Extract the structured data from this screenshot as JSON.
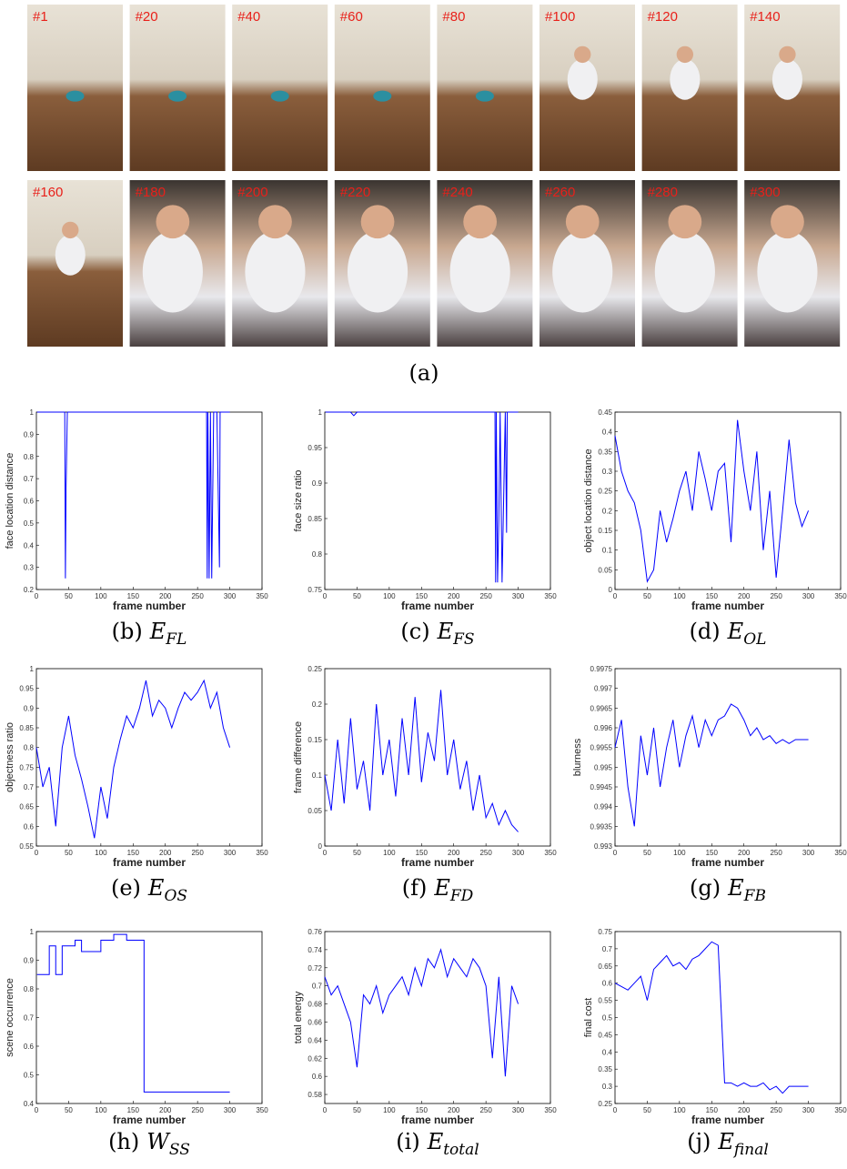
{
  "panel_a": {
    "caption": "(a)",
    "frames": [
      "#1",
      "#20",
      "#40",
      "#60",
      "#80",
      "#100",
      "#120",
      "#140",
      "#160",
      "#180",
      "#200",
      "#220",
      "#240",
      "#260",
      "#280",
      "#300"
    ]
  },
  "chart_data": [
    {
      "type": "line",
      "ylabel": "face location distance",
      "xlabel": "frame number",
      "label": "(b)",
      "symbol": "E",
      "subscript": "FL",
      "color": "#0000ff",
      "x": [
        1,
        44,
        45,
        46,
        48,
        264,
        265,
        266,
        268,
        270,
        272,
        275,
        280,
        284,
        285,
        286,
        300
      ],
      "values": [
        1,
        1,
        0.25,
        0.65,
        1,
        1,
        0.25,
        1,
        0.25,
        1,
        0.25,
        1,
        1,
        0.3,
        1,
        1,
        1
      ],
      "xlim": [
        0,
        350
      ],
      "xticks": [
        0,
        50,
        100,
        150,
        200,
        250,
        300,
        350
      ],
      "ylim": [
        0.2,
        1
      ],
      "yticks": [
        0.2,
        0.3,
        0.4,
        0.5,
        0.6,
        0.7,
        0.8,
        0.9,
        1
      ]
    },
    {
      "type": "line",
      "ylabel": "face size ratio",
      "xlabel": "frame number",
      "label": "(c)",
      "symbol": "E",
      "subscript": "FS",
      "color": "#0000ff",
      "x": [
        1,
        40,
        45,
        50,
        264,
        265,
        266,
        268,
        270,
        272,
        275,
        280,
        282,
        283,
        284,
        300
      ],
      "values": [
        1,
        1,
        0.995,
        1,
        1,
        0.76,
        1,
        0.76,
        0.85,
        1,
        0.76,
        1,
        0.83,
        1,
        1,
        1
      ],
      "xlim": [
        0,
        350
      ],
      "xticks": [
        0,
        50,
        100,
        150,
        200,
        250,
        300,
        350
      ],
      "ylim": [
        0.75,
        1
      ],
      "yticks": [
        0.75,
        0.8,
        0.85,
        0.9,
        0.95,
        1
      ]
    },
    {
      "type": "line",
      "ylabel": "object location distance",
      "xlabel": "frame number",
      "label": "(d)",
      "symbol": "E",
      "subscript": "OL",
      "color": "#0000ff",
      "x": [
        0,
        10,
        20,
        30,
        40,
        50,
        60,
        70,
        80,
        90,
        100,
        110,
        120,
        130,
        140,
        150,
        160,
        170,
        180,
        190,
        200,
        210,
        220,
        230,
        240,
        250,
        260,
        270,
        280,
        290,
        300
      ],
      "values": [
        0.39,
        0.3,
        0.25,
        0.22,
        0.15,
        0.02,
        0.05,
        0.2,
        0.12,
        0.18,
        0.25,
        0.3,
        0.2,
        0.35,
        0.28,
        0.2,
        0.3,
        0.32,
        0.12,
        0.43,
        0.3,
        0.2,
        0.35,
        0.1,
        0.25,
        0.03,
        0.2,
        0.38,
        0.22,
        0.16,
        0.2
      ],
      "xlim": [
        0,
        350
      ],
      "xticks": [
        0,
        50,
        100,
        150,
        200,
        250,
        300,
        350
      ],
      "ylim": [
        0,
        0.45
      ],
      "yticks": [
        0,
        0.05,
        0.1,
        0.15,
        0.2,
        0.25,
        0.3,
        0.35,
        0.4,
        0.45
      ]
    },
    {
      "type": "line",
      "ylabel": "objectness ratio",
      "xlabel": "frame number",
      "label": "(e)",
      "symbol": "E",
      "subscript": "OS",
      "color": "#0000ff",
      "x": [
        0,
        10,
        20,
        30,
        40,
        50,
        60,
        70,
        80,
        90,
        100,
        110,
        120,
        130,
        140,
        150,
        160,
        170,
        180,
        190,
        200,
        210,
        220,
        230,
        240,
        250,
        260,
        270,
        280,
        290,
        300
      ],
      "values": [
        0.8,
        0.7,
        0.75,
        0.6,
        0.8,
        0.88,
        0.78,
        0.72,
        0.65,
        0.57,
        0.7,
        0.62,
        0.75,
        0.82,
        0.88,
        0.85,
        0.9,
        0.97,
        0.88,
        0.92,
        0.9,
        0.85,
        0.9,
        0.94,
        0.92,
        0.94,
        0.97,
        0.9,
        0.94,
        0.85,
        0.8
      ],
      "xlim": [
        0,
        350
      ],
      "xticks": [
        0,
        50,
        100,
        150,
        200,
        250,
        300,
        350
      ],
      "ylim": [
        0.55,
        1
      ],
      "yticks": [
        0.55,
        0.6,
        0.65,
        0.7,
        0.75,
        0.8,
        0.85,
        0.9,
        0.95,
        1
      ]
    },
    {
      "type": "line",
      "ylabel": "frame difference",
      "xlabel": "frame number",
      "label": "(f)",
      "symbol": "E",
      "subscript": "FD",
      "color": "#0000ff",
      "x": [
        0,
        10,
        20,
        30,
        40,
        50,
        60,
        70,
        80,
        90,
        100,
        110,
        120,
        130,
        140,
        150,
        160,
        170,
        180,
        190,
        200,
        210,
        220,
        230,
        240,
        250,
        260,
        270,
        280,
        290,
        300
      ],
      "values": [
        0.1,
        0.05,
        0.15,
        0.06,
        0.18,
        0.08,
        0.12,
        0.05,
        0.2,
        0.1,
        0.15,
        0.07,
        0.18,
        0.1,
        0.21,
        0.09,
        0.16,
        0.12,
        0.22,
        0.1,
        0.15,
        0.08,
        0.12,
        0.05,
        0.1,
        0.04,
        0.06,
        0.03,
        0.05,
        0.03,
        0.02
      ],
      "xlim": [
        0,
        350
      ],
      "xticks": [
        0,
        50,
        100,
        150,
        200,
        250,
        300,
        350
      ],
      "ylim": [
        0,
        0.25
      ],
      "yticks": [
        0,
        0.05,
        0.1,
        0.15,
        0.2,
        0.25
      ]
    },
    {
      "type": "line",
      "ylabel": "blurness",
      "xlabel": "frame number",
      "label": "(g)",
      "symbol": "E",
      "subscript": "FB",
      "color": "#0000ff",
      "x": [
        0,
        10,
        20,
        30,
        40,
        50,
        60,
        70,
        80,
        90,
        100,
        110,
        120,
        130,
        140,
        150,
        160,
        170,
        180,
        190,
        200,
        210,
        220,
        230,
        240,
        250,
        260,
        270,
        280,
        290,
        300
      ],
      "values": [
        0.9955,
        0.9962,
        0.9945,
        0.9935,
        0.9958,
        0.9948,
        0.996,
        0.9945,
        0.9955,
        0.9962,
        0.995,
        0.9958,
        0.9963,
        0.9955,
        0.9962,
        0.9958,
        0.9962,
        0.9963,
        0.9966,
        0.9965,
        0.9962,
        0.9958,
        0.996,
        0.9957,
        0.9958,
        0.9956,
        0.9957,
        0.9956,
        0.9957,
        0.9957,
        0.9957
      ],
      "xlim": [
        0,
        350
      ],
      "xticks": [
        0,
        50,
        100,
        150,
        200,
        250,
        300,
        350
      ],
      "ylim": [
        0.993,
        0.9975
      ],
      "yticks": [
        0.993,
        0.9935,
        0.994,
        0.9945,
        0.995,
        0.9955,
        0.996,
        0.9965,
        0.997,
        0.9975
      ]
    },
    {
      "type": "line",
      "ylabel": "scene occurrence",
      "xlabel": "frame number",
      "label": "(h)",
      "symbol": "W",
      "subscript": "SS",
      "color": "#0000ff",
      "x": [
        1,
        20,
        20,
        30,
        30,
        40,
        40,
        60,
        60,
        70,
        70,
        100,
        100,
        120,
        120,
        140,
        140,
        167,
        167,
        300
      ],
      "values": [
        0.85,
        0.85,
        0.95,
        0.95,
        0.85,
        0.85,
        0.95,
        0.95,
        0.97,
        0.97,
        0.93,
        0.93,
        0.97,
        0.97,
        0.99,
        0.99,
        0.97,
        0.97,
        0.44,
        0.44
      ],
      "xlim": [
        0,
        350
      ],
      "xticks": [
        0,
        50,
        100,
        150,
        200,
        250,
        300,
        350
      ],
      "ylim": [
        0.4,
        1
      ],
      "yticks": [
        0.4,
        0.5,
        0.6,
        0.7,
        0.8,
        0.9,
        1
      ]
    },
    {
      "type": "line",
      "ylabel": "total energy",
      "xlabel": "frame number",
      "label": "(i)",
      "symbol": "E",
      "subscript": "total",
      "color": "#0000ff",
      "x": [
        0,
        10,
        20,
        30,
        40,
        50,
        60,
        70,
        80,
        90,
        100,
        110,
        120,
        130,
        140,
        150,
        160,
        170,
        180,
        190,
        200,
        210,
        220,
        230,
        240,
        250,
        260,
        270,
        280,
        290,
        300
      ],
      "values": [
        0.71,
        0.69,
        0.7,
        0.68,
        0.66,
        0.61,
        0.69,
        0.68,
        0.7,
        0.67,
        0.69,
        0.7,
        0.71,
        0.69,
        0.72,
        0.7,
        0.73,
        0.72,
        0.74,
        0.71,
        0.73,
        0.72,
        0.71,
        0.73,
        0.72,
        0.7,
        0.62,
        0.71,
        0.6,
        0.7,
        0.68
      ],
      "xlim": [
        0,
        350
      ],
      "xticks": [
        0,
        50,
        100,
        150,
        200,
        250,
        300,
        350
      ],
      "ylim": [
        0.57,
        0.76
      ],
      "yticks": [
        0.58,
        0.6,
        0.62,
        0.64,
        0.66,
        0.68,
        0.7,
        0.72,
        0.74,
        0.76
      ]
    },
    {
      "type": "line",
      "ylabel": "final cost",
      "xlabel": "frame number",
      "label": "(j)",
      "symbol": "E",
      "subscript": "final",
      "color": "#0000ff",
      "x": [
        0,
        10,
        20,
        30,
        40,
        50,
        60,
        70,
        80,
        90,
        100,
        110,
        120,
        130,
        140,
        150,
        160,
        170,
        180,
        190,
        200,
        210,
        220,
        230,
        240,
        250,
        260,
        270,
        280,
        290,
        300
      ],
      "values": [
        0.6,
        0.59,
        0.58,
        0.6,
        0.62,
        0.55,
        0.64,
        0.66,
        0.68,
        0.65,
        0.66,
        0.64,
        0.67,
        0.68,
        0.7,
        0.72,
        0.71,
        0.31,
        0.31,
        0.3,
        0.31,
        0.3,
        0.3,
        0.31,
        0.29,
        0.3,
        0.28,
        0.3,
        0.3,
        0.3,
        0.3
      ],
      "xlim": [
        0,
        350
      ],
      "xticks": [
        0,
        50,
        100,
        150,
        200,
        250,
        300,
        350
      ],
      "ylim": [
        0.25,
        0.75
      ],
      "yticks": [
        0.25,
        0.3,
        0.35,
        0.4,
        0.45,
        0.5,
        0.55,
        0.6,
        0.65,
        0.7,
        0.75
      ]
    }
  ]
}
